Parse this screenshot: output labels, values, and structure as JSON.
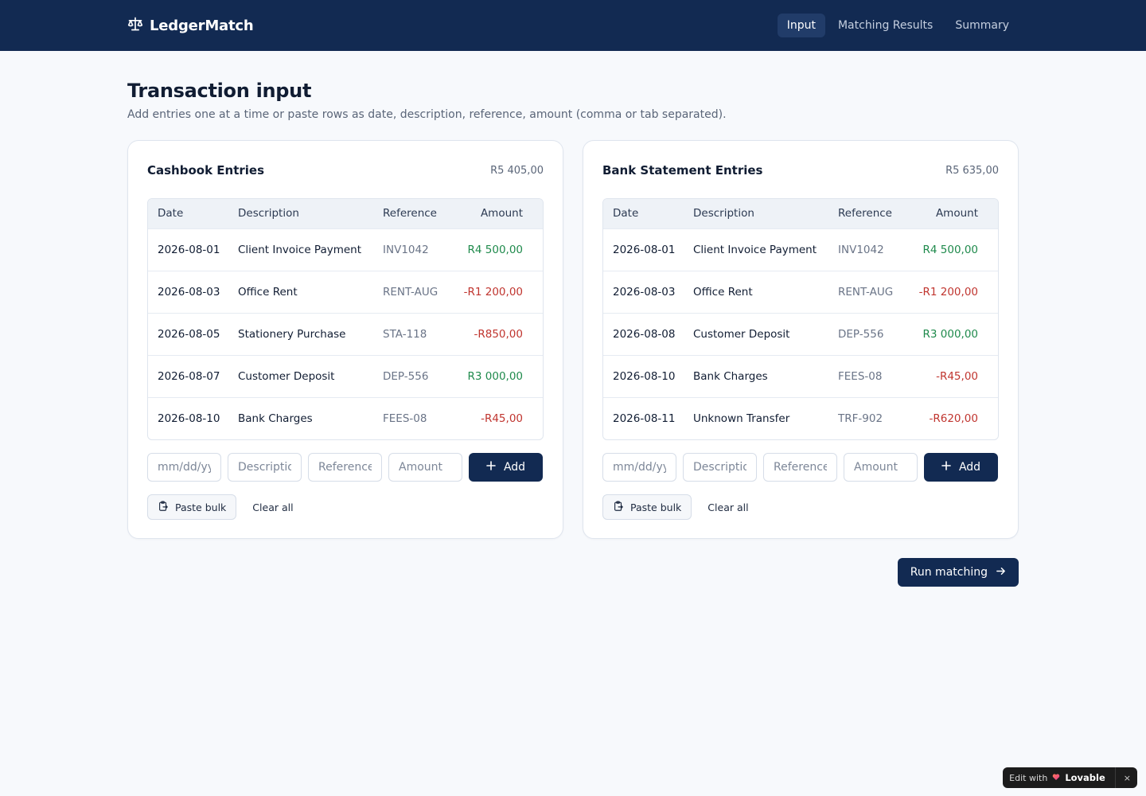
{
  "app": {
    "name": "LedgerMatch",
    "logo_icon": "scale-icon"
  },
  "nav": [
    {
      "label": "Input",
      "active": true
    },
    {
      "label": "Matching Results",
      "active": false
    },
    {
      "label": "Summary",
      "active": false
    }
  ],
  "page": {
    "title": "Transaction input",
    "subtitle": "Add entries one at a time or paste rows as date, description, reference, amount (comma or tab separated)."
  },
  "columns": [
    "Date",
    "Description",
    "Reference",
    "Amount"
  ],
  "cashbook": {
    "title": "Cashbook Entries",
    "total": "R5 405,00",
    "rows": [
      {
        "date": "2026-08-01",
        "description": "Client Invoice Payment",
        "reference": "INV1042",
        "amount": "R4 500,00",
        "sign": "pos"
      },
      {
        "date": "2026-08-03",
        "description": "Office Rent",
        "reference": "RENT-AUG",
        "amount": "-R1 200,00",
        "sign": "neg"
      },
      {
        "date": "2026-08-05",
        "description": "Stationery Purchase",
        "reference": "STA-118",
        "amount": "-R850,00",
        "sign": "neg"
      },
      {
        "date": "2026-08-07",
        "description": "Customer Deposit",
        "reference": "DEP-556",
        "amount": "R3 000,00",
        "sign": "pos"
      },
      {
        "date": "2026-08-10",
        "description": "Bank Charges",
        "reference": "FEES-08",
        "amount": "-R45,00",
        "sign": "neg"
      }
    ]
  },
  "bank": {
    "title": "Bank Statement Entries",
    "total": "R5 635,00",
    "rows": [
      {
        "date": "2026-08-01",
        "description": "Client Invoice Payment",
        "reference": "INV1042",
        "amount": "R4 500,00",
        "sign": "pos"
      },
      {
        "date": "2026-08-03",
        "description": "Office Rent",
        "reference": "RENT-AUG",
        "amount": "-R1 200,00",
        "sign": "neg"
      },
      {
        "date": "2026-08-08",
        "description": "Customer Deposit",
        "reference": "DEP-556",
        "amount": "R3 000,00",
        "sign": "pos"
      },
      {
        "date": "2026-08-10",
        "description": "Bank Charges",
        "reference": "FEES-08",
        "amount": "-R45,00",
        "sign": "neg"
      },
      {
        "date": "2026-08-11",
        "description": "Unknown Transfer",
        "reference": "TRF-902",
        "amount": "-R620,00",
        "sign": "neg"
      }
    ]
  },
  "form": {
    "date_placeholder": "mm/dd/yyyy",
    "description_placeholder": "Description",
    "reference_placeholder": "Reference",
    "amount_placeholder": "Amount",
    "add_label": "Add",
    "paste_label": "Paste bulk",
    "clear_label": "Clear all"
  },
  "run_label": "Run matching",
  "badge": {
    "prefix": "Edit with",
    "brand": "Lovable",
    "close": "×"
  },
  "colors": {
    "nav_bg": "#122a52",
    "positive": "#1f8a4c",
    "negative": "#c0352f",
    "page_bg": "#f7f9fc"
  }
}
